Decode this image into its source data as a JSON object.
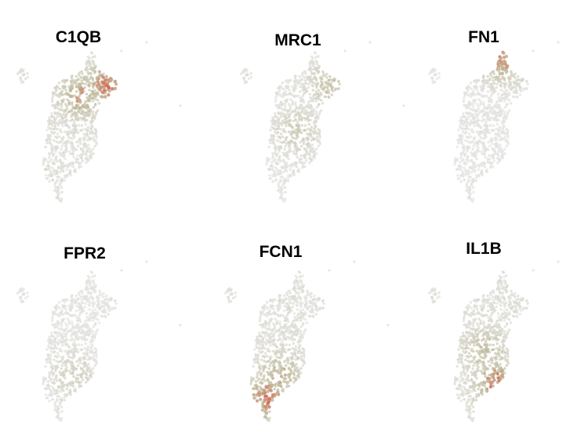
{
  "chart_data": [
    {
      "type": "scatter",
      "title": "C1QB",
      "hotspots": [
        {
          "region": "upper-right",
          "intensity": 0.95
        },
        {
          "region": "upper-middle",
          "intensity": 0.8
        }
      ],
      "overall_expression": 0.55
    },
    {
      "type": "scatter",
      "title": "MRC1",
      "hotspots": [
        {
          "region": "upper-right",
          "intensity": 0.55
        },
        {
          "region": "middle",
          "intensity": 0.4
        }
      ],
      "overall_expression": 0.35
    },
    {
      "type": "scatter",
      "title": "FN1",
      "hotspots": [
        {
          "region": "top-tip",
          "intensity": 0.9
        }
      ],
      "overall_expression": 0.2
    },
    {
      "type": "scatter",
      "title": "FPR2",
      "hotspots": [
        {
          "region": "lower-middle",
          "intensity": 0.35
        }
      ],
      "overall_expression": 0.2
    },
    {
      "type": "scatter",
      "title": "FCN1",
      "hotspots": [
        {
          "region": "bottom",
          "intensity": 0.95
        },
        {
          "region": "lower-middle",
          "intensity": 0.7
        }
      ],
      "overall_expression": 0.5
    },
    {
      "type": "scatter",
      "title": "IL1B",
      "hotspots": [
        {
          "region": "lower-right",
          "intensity": 0.95
        },
        {
          "region": "middle",
          "intensity": 0.6
        }
      ],
      "overall_expression": 0.55
    }
  ],
  "colors": {
    "low": "#e4e4e4",
    "mid": "#bfbc9c",
    "high": "#d94a3a"
  }
}
